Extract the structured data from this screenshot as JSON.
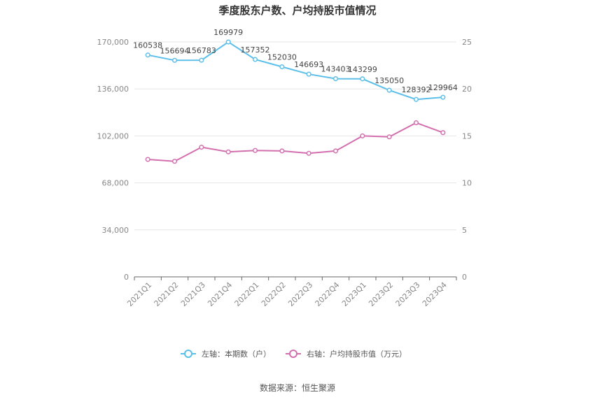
{
  "chart_data": {
    "type": "line",
    "title": "季度股东户数、户均持股市值情况",
    "categories": [
      "2021Q1",
      "2021Q2",
      "2021Q3",
      "2021Q4",
      "2022Q1",
      "2022Q2",
      "2022Q3",
      "2022Q4",
      "2023Q1",
      "2023Q2",
      "2023Q3",
      "2023Q4"
    ],
    "y_left": {
      "min": 0,
      "max": 170000,
      "ticks": [
        0,
        34000,
        68000,
        102000,
        136000,
        170000
      ],
      "tick_labels": [
        "0",
        "34,000",
        "68,000",
        "102,000",
        "136,000",
        "170,000"
      ]
    },
    "y_right": {
      "min": 0,
      "max": 25,
      "ticks": [
        0,
        5,
        10,
        15,
        20,
        25
      ],
      "tick_labels": [
        "0",
        "5",
        "10",
        "15",
        "20",
        "25"
      ]
    },
    "series": [
      {
        "name": "左轴：本期数（户）",
        "axis": "left",
        "color": "#5bbfea",
        "values": [
          160538,
          156694,
          156783,
          169979,
          157352,
          152030,
          146693,
          143403,
          143299,
          135050,
          128392,
          129964
        ],
        "labels": [
          "160538",
          "156694",
          "156783",
          "169979",
          "157352",
          "152030",
          "146693",
          "143403",
          "143299",
          "135050",
          "128392",
          "129964"
        ]
      },
      {
        "name": "右轴：户均持股市值（万元）",
        "axis": "right",
        "color": "#d36fae",
        "values": [
          12.5,
          12.3,
          13.8,
          13.3,
          13.45,
          13.4,
          13.15,
          13.4,
          15.0,
          14.9,
          16.4,
          15.35
        ]
      }
    ],
    "grid": true,
    "legend_position": "bottom"
  },
  "source": "数据来源：恒生聚源"
}
